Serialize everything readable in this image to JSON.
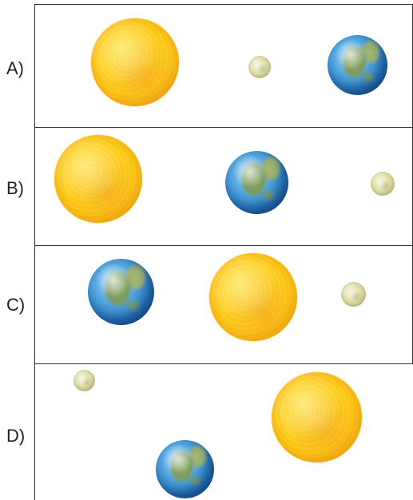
{
  "rows": [
    {
      "label": "A)",
      "objects": [
        "sun",
        "moon",
        "earth"
      ]
    },
    {
      "label": "B)",
      "objects": [
        "sun",
        "earth",
        "moon"
      ]
    },
    {
      "label": "C)",
      "objects": [
        "earth",
        "sun",
        "moon"
      ]
    },
    {
      "label": "D)",
      "objects": [
        "moon",
        "earth",
        "sun"
      ]
    }
  ],
  "colors": {
    "sun": "#ffd21e",
    "earth": "#1f6bb4",
    "moon": "#dedca6",
    "border": "#333333"
  }
}
